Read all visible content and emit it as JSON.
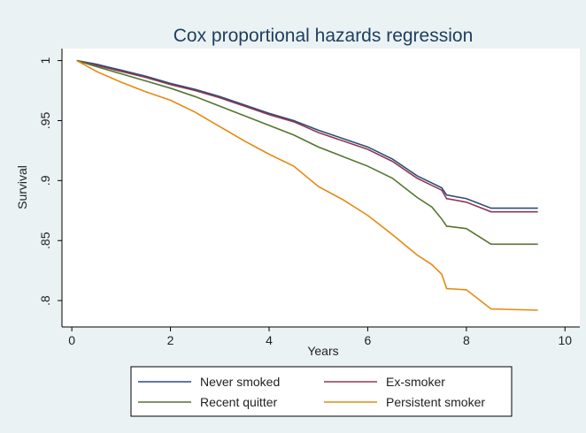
{
  "chart_data": {
    "type": "line",
    "title": "Cox proportional hazards regression",
    "x_label": "Years",
    "y_label": "Survival",
    "x": [
      0.1,
      0.5,
      1,
      1.5,
      2,
      2.5,
      3,
      3.5,
      4,
      4.5,
      5,
      5.5,
      6,
      6.5,
      7,
      7.3,
      7.5,
      7.6,
      8,
      8.5,
      9.45
    ],
    "series": [
      {
        "name": "Never smoked",
        "color": "#2b4d7a",
        "values": [
          1,
          0.997,
          0.992,
          0.987,
          0.981,
          0.976,
          0.97,
          0.963,
          0.956,
          0.95,
          0.942,
          0.935,
          0.928,
          0.918,
          0.904,
          0.898,
          0.894,
          0.888,
          0.885,
          0.877,
          0.877
        ]
      },
      {
        "name": "Ex-smoker",
        "color": "#8e3a52",
        "values": [
          1,
          0.996,
          0.991,
          0.986,
          0.98,
          0.975,
          0.969,
          0.962,
          0.955,
          0.949,
          0.94,
          0.933,
          0.926,
          0.916,
          0.902,
          0.896,
          0.892,
          0.885,
          0.882,
          0.874,
          0.874
        ]
      },
      {
        "name": "Recent quitter",
        "color": "#55752f",
        "values": [
          1,
          0.995,
          0.989,
          0.983,
          0.977,
          0.97,
          0.962,
          0.954,
          0.946,
          0.938,
          0.928,
          0.92,
          0.912,
          0.902,
          0.886,
          0.878,
          0.868,
          0.862,
          0.86,
          0.847,
          0.847
        ]
      },
      {
        "name": "Persistent smoker",
        "color": "#e38a10",
        "values": [
          1,
          0.991,
          0.982,
          0.974,
          0.967,
          0.957,
          0.945,
          0.933,
          0.922,
          0.912,
          0.895,
          0.884,
          0.871,
          0.855,
          0.838,
          0.83,
          0.822,
          0.81,
          0.809,
          0.793,
          0.792
        ]
      }
    ],
    "xlim": [
      -0.2,
      10.3
    ],
    "ylim": [
      0.778,
      1.01
    ],
    "xticks": [
      0,
      2,
      4,
      6,
      8,
      10
    ],
    "yticks": [
      {
        "value": 0.8,
        "label": ".8"
      },
      {
        "value": 0.85,
        "label": ".85"
      },
      {
        "value": 0.9,
        "label": ".9"
      },
      {
        "value": 0.95,
        "label": ".95"
      },
      1
    ],
    "grid": false,
    "legend_position": "bottom"
  }
}
